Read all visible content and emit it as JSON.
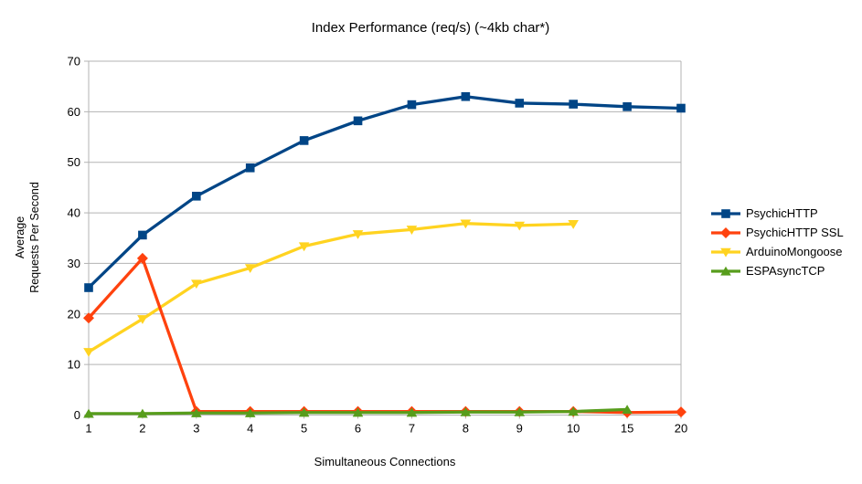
{
  "chart_data": {
    "type": "line",
    "title": "Index Performance (req/s) (~4kb char*)",
    "xlabel": "Simultaneous Connections",
    "ylabel_lines": [
      "Average",
      "Requests Per Second"
    ],
    "categories": [
      "1",
      "2",
      "3",
      "4",
      "5",
      "6",
      "7",
      "8",
      "9",
      "10",
      "15",
      "20"
    ],
    "ylim": [
      0,
      70
    ],
    "yticks": [
      0,
      10,
      20,
      30,
      40,
      50,
      60,
      70
    ],
    "grid": "horizontal",
    "legend_position": "right",
    "axis_color": "#b3b3b3",
    "grid_color": "#b3b3b3",
    "background_color": "#ffffff",
    "series": [
      {
        "name": "PsychicHTTP",
        "color": "#004586",
        "marker": "square",
        "values": [
          25.2,
          35.6,
          43.3,
          48.9,
          54.3,
          58.2,
          61.4,
          63.0,
          61.7,
          61.5,
          61.0,
          60.7
        ]
      },
      {
        "name": "PsychicHTTP SSL",
        "color": "#ff420e",
        "marker": "diamond",
        "values": [
          19.2,
          31.0,
          0.7,
          0.7,
          0.7,
          0.7,
          0.7,
          0.7,
          0.7,
          0.7,
          0.5,
          0.6
        ]
      },
      {
        "name": "ArduinoMongoose",
        "color": "#ffd320",
        "marker": "triangle-down",
        "values": [
          12.5,
          19.0,
          26.0,
          29.1,
          33.4,
          35.8,
          36.7,
          37.9,
          37.5,
          37.8,
          null,
          null
        ]
      },
      {
        "name": "ESPAsyncTCP",
        "color": "#579d1c",
        "marker": "triangle-up",
        "values": [
          0.3,
          0.3,
          0.4,
          0.4,
          0.5,
          0.5,
          0.5,
          0.6,
          0.6,
          0.7,
          1.1,
          null
        ]
      }
    ]
  }
}
